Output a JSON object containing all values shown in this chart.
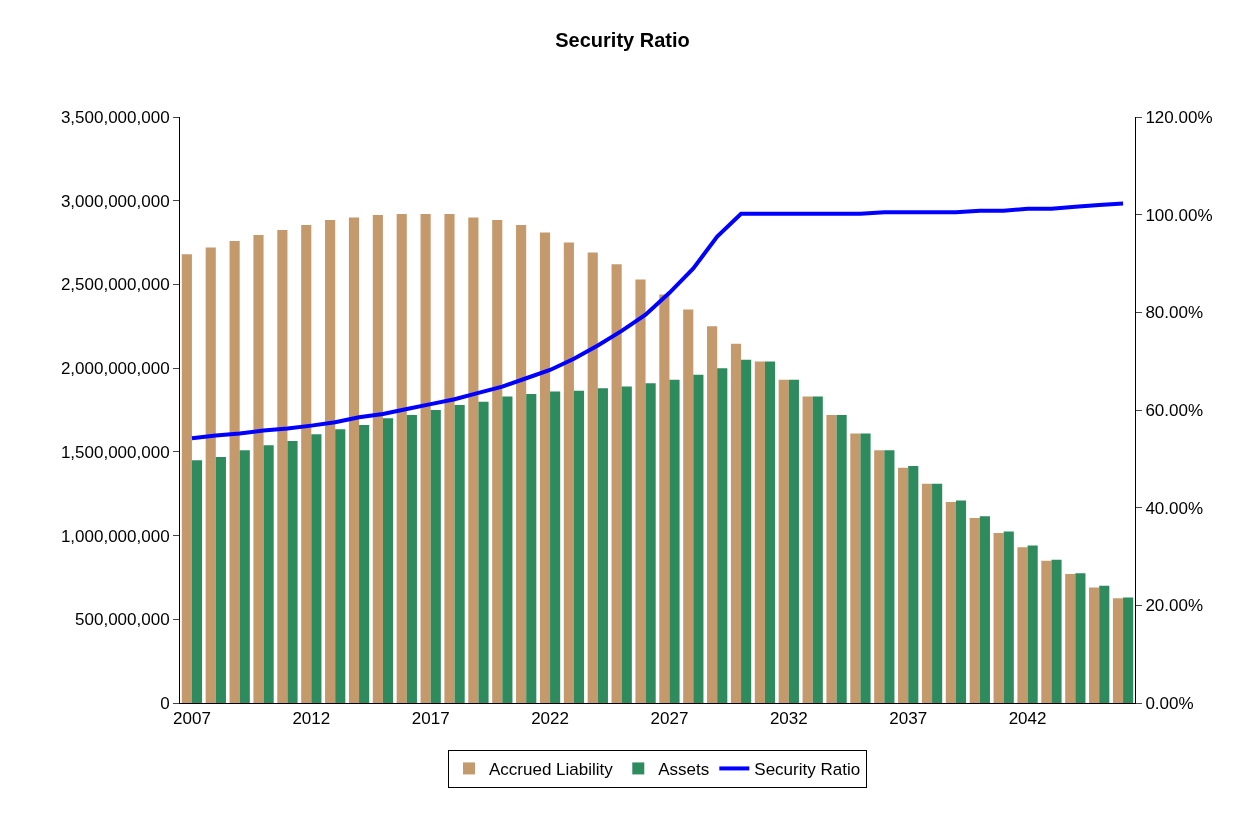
{
  "chart_data": {
    "type": "bar",
    "title": "Security Ratio",
    "categories": [
      "2007",
      null,
      null,
      null,
      null,
      "2012",
      null,
      null,
      null,
      null,
      "2017",
      null,
      null,
      null,
      null,
      "2022",
      null,
      null,
      null,
      null,
      "2027",
      null,
      null,
      null,
      null,
      "2032",
      null,
      null,
      null,
      null,
      "2037",
      null,
      null,
      null,
      null,
      "2042",
      null,
      null,
      null,
      null
    ],
    "series": [
      {
        "name": "Accrued Liability",
        "color": "#c49a6c",
        "values": [
          2680000000,
          2720000000,
          2760000000,
          2795000000,
          2825000000,
          2855000000,
          2885000000,
          2900000000,
          2915000000,
          2920000000,
          2920000000,
          2920000000,
          2900000000,
          2885000000,
          2855000000,
          2810000000,
          2750000000,
          2690000000,
          2620000000,
          2530000000,
          2440000000,
          2350000000,
          2250000000,
          2145000000,
          2040000000,
          1930000000,
          1830000000,
          1720000000,
          1610000000,
          1510000000,
          1405000000,
          1310000000,
          1200000000,
          1105000000,
          1015000000,
          930000000,
          850000000,
          770000000,
          690000000,
          625000000
        ]
      },
      {
        "name": "Assets",
        "color": "#2e8b5e",
        "values": [
          1450000000,
          1470000000,
          1510000000,
          1540000000,
          1565000000,
          1605000000,
          1635000000,
          1660000000,
          1700000000,
          1720000000,
          1750000000,
          1780000000,
          1800000000,
          1830000000,
          1845000000,
          1860000000,
          1865000000,
          1880000000,
          1890000000,
          1910000000,
          1930000000,
          1960000000,
          2000000000,
          2050000000,
          2040000000,
          1930000000,
          1830000000,
          1720000000,
          1610000000,
          1510000000,
          1415000000,
          1310000000,
          1210000000,
          1115000000,
          1025000000,
          940000000,
          855000000,
          775000000,
          700000000,
          630000000
        ]
      },
      {
        "name": "Security Ratio",
        "type": "line",
        "axis": "y2",
        "color": "#0000ff",
        "values": [
          54.2,
          54.8,
          55.2,
          55.8,
          56.2,
          56.8,
          57.5,
          58.5,
          59.2,
          60.2,
          61.2,
          62.2,
          63.5,
          64.8,
          66.5,
          68.2,
          70.5,
          73.2,
          76.2,
          79.5,
          84,
          89,
          95.5,
          100.2,
          100.2,
          100.2,
          100.2,
          100.2,
          100.2,
          100.5,
          100.5,
          100.5,
          100.5,
          100.8,
          100.8,
          101.2,
          101.2,
          101.6,
          102,
          102.3
        ]
      }
    ],
    "ylim": [
      0,
      3500000000
    ],
    "yticks": [
      {
        "value": 0,
        "label": "0"
      },
      {
        "value": 500000000,
        "label": "500,000,000"
      },
      {
        "value": 1000000000,
        "label": "1,000,000,000"
      },
      {
        "value": 1500000000,
        "label": "1,500,000,000"
      },
      {
        "value": 2000000000,
        "label": "2,000,000,000"
      },
      {
        "value": 2500000000,
        "label": "2,500,000,000"
      },
      {
        "value": 3000000000,
        "label": "3,000,000,000"
      },
      {
        "value": 3500000000,
        "label": "3,500,000,000"
      }
    ],
    "y2lim": [
      0,
      120
    ],
    "y2ticks": [
      {
        "value": 0,
        "label": "0.00%"
      },
      {
        "value": 20,
        "label": "20.00%"
      },
      {
        "value": 40,
        "label": "40.00%"
      },
      {
        "value": 60,
        "label": "60.00%"
      },
      {
        "value": 80,
        "label": "80.00%"
      },
      {
        "value": 100,
        "label": "100.00%"
      },
      {
        "value": 120,
        "label": "120.00%"
      }
    ],
    "legend": "bottom",
    "marker": "none",
    "line_style": "solid"
  }
}
